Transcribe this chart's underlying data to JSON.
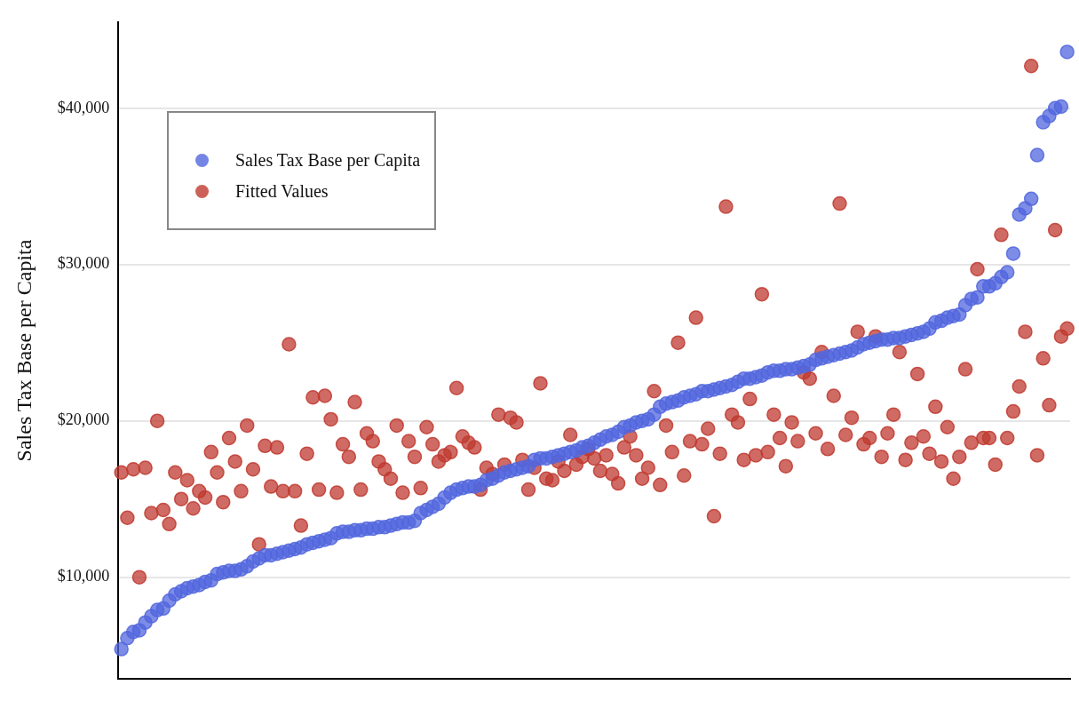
{
  "chart_data": {
    "type": "scatter",
    "ylabel": "Sales Tax Base per Capita",
    "categories": [
      null,
      null,
      null,
      null,
      null,
      null,
      null,
      null,
      null,
      null,
      null,
      null,
      null,
      null,
      null,
      null,
      null,
      null,
      null,
      null,
      null,
      null,
      null,
      null,
      null,
      null,
      null,
      null,
      null,
      null,
      null,
      null,
      null,
      null,
      null,
      null,
      null,
      null,
      null,
      null,
      null,
      null,
      null,
      null,
      null,
      null,
      null,
      null,
      null,
      null,
      null,
      null,
      null,
      null,
      null,
      null,
      null,
      null,
      null,
      null,
      null,
      null,
      null,
      null,
      null,
      null,
      null,
      null,
      null,
      null,
      null,
      null,
      null,
      null,
      null,
      null,
      null,
      null,
      null,
      null,
      null,
      null,
      null,
      null,
      null,
      null,
      null,
      null,
      null,
      null,
      null,
      null,
      null,
      null,
      null,
      null,
      null,
      null,
      null,
      null,
      null,
      null,
      null,
      null,
      null,
      null,
      null,
      null,
      null,
      null,
      null,
      null,
      null,
      null,
      null,
      null,
      null,
      null,
      null,
      null,
      null,
      null,
      null,
      null,
      null,
      null,
      null,
      null,
      null,
      null,
      null,
      null,
      null,
      null,
      null,
      null,
      null,
      null,
      null,
      null,
      null,
      null,
      null,
      null,
      null,
      null,
      null,
      null,
      null,
      null,
      null,
      null,
      null,
      null,
      null,
      null,
      null,
      null,
      null
    ],
    "series": [
      {
        "name": "Sales Tax Base per Capita",
        "color": "#5166dd",
        "values": [
          5400,
          6100,
          6500,
          6600,
          7100,
          7500,
          7900,
          8000,
          8500,
          8900,
          9100,
          9300,
          9400,
          9500,
          9700,
          9800,
          10200,
          10300,
          10400,
          10400,
          10500,
          10700,
          11000,
          11200,
          11400,
          11400,
          11500,
          11600,
          11700,
          11800,
          11900,
          12100,
          12200,
          12300,
          12400,
          12500,
          12800,
          12900,
          12900,
          13000,
          13000,
          13100,
          13100,
          13200,
          13200,
          13300,
          13400,
          13500,
          13500,
          13600,
          14100,
          14300,
          14500,
          14700,
          15100,
          15400,
          15600,
          15700,
          15800,
          15800,
          15900,
          16200,
          16300,
          16500,
          16700,
          16800,
          16900,
          17000,
          17100,
          17500,
          17600,
          17600,
          17700,
          17800,
          17900,
          18000,
          18100,
          18300,
          18400,
          18600,
          18800,
          19000,
          19100,
          19300,
          19600,
          19700,
          19900,
          20000,
          20100,
          20400,
          20900,
          21100,
          21200,
          21300,
          21500,
          21600,
          21700,
          21900,
          21900,
          22000,
          22100,
          22200,
          22300,
          22500,
          22700,
          22700,
          22800,
          22900,
          23100,
          23200,
          23200,
          23300,
          23300,
          23400,
          23500,
          23600,
          23900,
          24000,
          24100,
          24200,
          24300,
          24400,
          24500,
          24700,
          24900,
          25000,
          25100,
          25200,
          25200,
          25300,
          25300,
          25400,
          25500,
          25600,
          25700,
          25900,
          26300,
          26400,
          26600,
          26700,
          26800,
          27400,
          27800,
          27900,
          28600,
          28600,
          28800,
          29200,
          29500,
          30700,
          33200,
          33600,
          34200,
          37000,
          39100,
          39500,
          40000,
          40100,
          43600
        ]
      },
      {
        "name": "Fitted Values",
        "color": "#bf3a30",
        "values": [
          16700,
          13800,
          16900,
          10000,
          17000,
          14100,
          20000,
          14300,
          13400,
          16700,
          15000,
          16200,
          14400,
          15500,
          15100,
          18000,
          16700,
          14800,
          18900,
          17400,
          15500,
          19700,
          16900,
          12100,
          18400,
          15800,
          18300,
          15500,
          24900,
          15500,
          13300,
          17900,
          21500,
          15600,
          21600,
          20100,
          15400,
          18500,
          17700,
          21200,
          15600,
          19200,
          18700,
          17400,
          16900,
          16300,
          19700,
          15400,
          18700,
          17700,
          15700,
          19600,
          18500,
          17400,
          17800,
          18000,
          22100,
          19000,
          18600,
          18300,
          15600,
          17000,
          16600,
          20400,
          17200,
          20200,
          19900,
          17500,
          15600,
          17000,
          22400,
          16300,
          16200,
          17400,
          16800,
          19100,
          17200,
          17700,
          18200,
          17600,
          16800,
          17800,
          16600,
          16000,
          18300,
          19000,
          17800,
          16300,
          17000,
          21900,
          15900,
          19700,
          18000,
          25000,
          16500,
          18700,
          26600,
          18500,
          19500,
          13900,
          17900,
          33700,
          20400,
          19900,
          17500,
          21400,
          17800,
          28100,
          18000,
          20400,
          18900,
          17100,
          19900,
          18700,
          23100,
          22700,
          19200,
          24400,
          18200,
          21600,
          33900,
          19100,
          20200,
          25700,
          18500,
          18900,
          25400,
          17700,
          19200,
          20400,
          24400,
          17500,
          18600,
          23000,
          19000,
          17900,
          20900,
          17400,
          19600,
          16300,
          17700,
          23300,
          18600,
          29700,
          18900,
          18900,
          17200,
          31900,
          18900,
          20600,
          22200,
          25700,
          42700,
          17800,
          24000,
          21000,
          32200,
          25400,
          25900
        ]
      }
    ],
    "ylim": [
      3500,
      45500
    ],
    "yticks": [
      {
        "value": 10000,
        "label": "$10,000"
      },
      {
        "value": 20000,
        "label": "$20,000"
      },
      {
        "value": 30000,
        "label": "$30,000"
      },
      {
        "value": 40000,
        "label": "$40,000"
      }
    ],
    "grid": "y",
    "legend": "top left",
    "marker": "circle"
  }
}
